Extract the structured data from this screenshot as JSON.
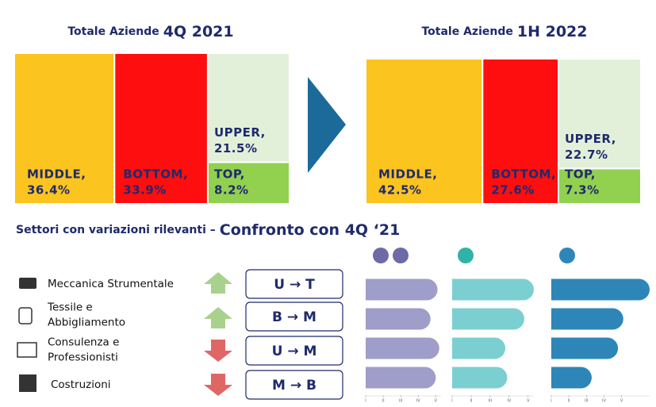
{
  "chart_data": [
    {
      "type": "treemap",
      "title": [
        "Totale Aziende",
        "4Q 2021"
      ],
      "categories": [
        "MIDDLE,",
        "BOTTOM,",
        "UPPER,",
        "TOP,"
      ],
      "values": [
        36.4,
        33.9,
        21.5,
        8.2
      ],
      "value_labels": [
        "36.4%",
        "33.9%",
        "21.5%",
        "8.2%"
      ],
      "colors": [
        "#fbc41f",
        "#fe0e0e",
        "#e2f0d9",
        "#92d050"
      ]
    },
    {
      "type": "treemap",
      "title": [
        "Totale Aziende",
        "1H 2022"
      ],
      "categories": [
        "MIDDLE,",
        "BOTTOM,",
        "UPPER,",
        "TOP,"
      ],
      "values": [
        42.5,
        27.6,
        22.7,
        7.3
      ],
      "value_labels": [
        "42.5%",
        "27.6%",
        "22.7%",
        "7.3%"
      ],
      "colors": [
        "#fbc41f",
        "#fe0e0e",
        "#e2f0d9",
        "#92d050"
      ]
    },
    {
      "type": "hbar",
      "values": [
        5.1,
        4.7,
        5.2,
        5.0
      ],
      "color": "#9f9dc9",
      "xlim": [
        1,
        5.3
      ],
      "xticks": [
        {
          "value": 1,
          "label": "I"
        },
        {
          "value": 2,
          "label": "II"
        },
        {
          "value": 3,
          "label": "III"
        },
        {
          "value": 4,
          "label": "IV"
        },
        {
          "value": 5,
          "label": "V"
        }
      ]
    },
    {
      "type": "hbar",
      "values": [
        5.3,
        4.8,
        3.8,
        3.9
      ],
      "color": "#7ccfd0",
      "xlim": [
        1,
        5.3
      ],
      "xticks": [
        {
          "value": 1,
          "label": "I"
        },
        {
          "value": 2,
          "label": "II"
        },
        {
          "value": 3,
          "label": "III"
        },
        {
          "value": 4,
          "label": "IV"
        },
        {
          "value": 5,
          "label": "V"
        }
      ]
    },
    {
      "type": "hbar",
      "values": [
        6.6,
        5.1,
        4.8,
        3.3
      ],
      "color": "#2e86b8",
      "xlim": [
        1,
        6.6
      ],
      "xticks": [
        {
          "value": 1,
          "label": "I"
        },
        {
          "value": 2,
          "label": "II"
        },
        {
          "value": 3,
          "label": "III"
        },
        {
          "value": 4,
          "label": "IV"
        },
        {
          "value": 5,
          "label": "V"
        }
      ]
    }
  ],
  "heading": [
    "Settori con variazioni rilevanti –",
    "Confronto con 4Q ‘21"
  ],
  "sectors": [
    {
      "label": [
        "Meccanica Strumentale"
      ],
      "change": "U → T"
    },
    {
      "label": [
        "Tessile e",
        "Abbigliamento"
      ],
      "change": "B → M"
    },
    {
      "label": [
        "Consulenza e",
        "Professionisti"
      ],
      "change": "U → M"
    },
    {
      "label": [
        "Costruzioni"
      ],
      "change": "M → B"
    }
  ]
}
